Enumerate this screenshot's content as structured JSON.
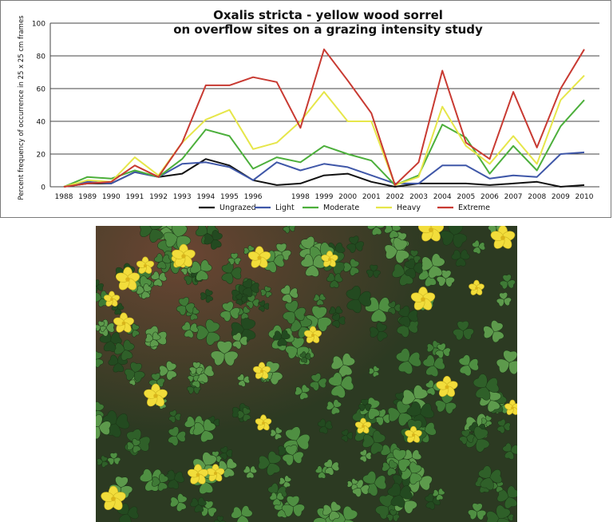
{
  "chart_data": {
    "type": "line",
    "title": [
      "Oxalis stricta  -  yellow wood sorrel",
      "on overflow sites on a grazing intensity study"
    ],
    "ylabel": "Percent frequency of occurrence in 25 x 25 cm frames",
    "xlabel": "",
    "ylim": [
      0,
      100
    ],
    "yticks": [
      "0",
      "20",
      "40",
      "60",
      "80",
      "100"
    ],
    "ytick_values": [
      0,
      20,
      40,
      60,
      80,
      100
    ],
    "grid": "horizontal",
    "legend_position": "bottom",
    "x": [
      "1988",
      "1989",
      "1990",
      "1991",
      "1992",
      "1993",
      "1994",
      "1995",
      "1996",
      "1997",
      "1998",
      "1999",
      "2000",
      "2001",
      "2002",
      "2003",
      "2004",
      "2005",
      "2006",
      "2007",
      "2008",
      "2009",
      "2010"
    ],
    "x_ticks_shown": [
      "1988",
      "1989",
      "1990",
      "1991",
      "1992",
      "1993",
      "1994",
      "1995",
      "1996",
      "1998",
      "1999",
      "2000",
      "2001",
      "2002",
      "2003",
      "2004",
      "2005",
      "2006",
      "2007",
      "2008",
      "2009",
      "2010"
    ],
    "series": [
      {
        "name": "Ungrazed",
        "color": "#111111",
        "values": [
          0,
          2,
          2,
          9,
          6,
          8,
          17,
          13,
          4,
          1,
          2,
          7,
          8,
          3,
          0,
          2,
          2,
          2,
          1,
          2,
          3,
          0,
          1
        ]
      },
      {
        "name": "Light",
        "color": "#3f57a8",
        "values": [
          0,
          3,
          2,
          9,
          6,
          14,
          15,
          12,
          4,
          15,
          10,
          14,
          12,
          7,
          2,
          2,
          13,
          13,
          5,
          7,
          6,
          20,
          21
        ]
      },
      {
        "name": "Moderate",
        "color": "#4caf3b",
        "values": [
          0,
          6,
          5,
          10,
          6,
          17,
          35,
          31,
          11,
          18,
          15,
          25,
          20,
          16,
          1,
          7,
          38,
          30,
          8,
          25,
          10,
          37,
          53
        ]
      },
      {
        "name": "Heavy",
        "color": "#e6e64a",
        "values": [
          0,
          4,
          3,
          18,
          7,
          27,
          41,
          47,
          23,
          27,
          40,
          58,
          40,
          40,
          1,
          6,
          49,
          25,
          14,
          31,
          14,
          53,
          68
        ]
      },
      {
        "name": "Extreme",
        "color": "#c83a32",
        "values": [
          0,
          2,
          3,
          13,
          6,
          27,
          62,
          62,
          67,
          64,
          36,
          84,
          65,
          45,
          1,
          15,
          71,
          27,
          17,
          58,
          24,
          60,
          84
        ]
      }
    ]
  },
  "photo": {
    "subject": "yellow wood sorrel plants",
    "colors": {
      "leaf": "#3f7a36",
      "leaf_dark": "#234a20",
      "petal": "#f2dd3b",
      "soil": "#5a3a2b"
    }
  }
}
